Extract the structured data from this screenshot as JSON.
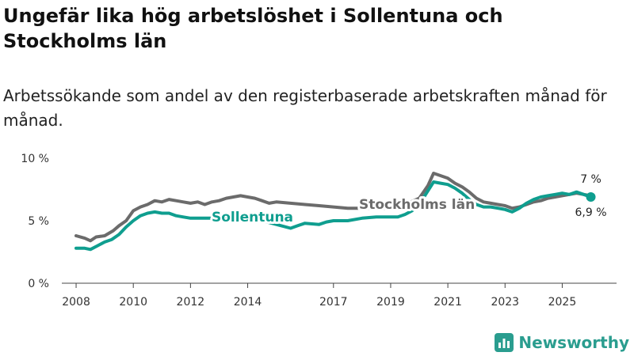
{
  "title": "Ungefär lika hög arbetslöshet i Sollentuna och Stockholms län",
  "subtitle": "Arbetssökande som andel av den registerbaserade arbetskraften månad för månad.",
  "brand": {
    "name": "Newsworthy",
    "color": "#2a9d8f"
  },
  "chart_data": {
    "type": "line",
    "ylim": [
      0,
      10
    ],
    "xlim": [
      2007.5,
      2026.9
    ],
    "yticks": [
      0,
      5,
      10
    ],
    "ytick_labels": [
      "0 %",
      "5 %",
      "10 %"
    ],
    "xticks": [
      2008,
      2010,
      2012,
      2014,
      2017,
      2019,
      2021,
      2023,
      2025
    ],
    "xtick_labels": [
      "2008",
      "2010",
      "2012",
      "2014",
      "2017",
      "2019",
      "2021",
      "2023",
      "2025"
    ],
    "grid": false,
    "series": [
      {
        "name": "Stockholms län",
        "color": "#6b6b6b",
        "label": "Stockholms län",
        "end_label": "7 %",
        "points": [
          [
            2008.0,
            3.8
          ],
          [
            2008.3,
            3.6
          ],
          [
            2008.5,
            3.4
          ],
          [
            2008.7,
            3.7
          ],
          [
            2009.0,
            3.8
          ],
          [
            2009.3,
            4.2
          ],
          [
            2009.5,
            4.6
          ],
          [
            2009.75,
            5.0
          ],
          [
            2010.0,
            5.8
          ],
          [
            2010.25,
            6.1
          ],
          [
            2010.5,
            6.3
          ],
          [
            2010.75,
            6.6
          ],
          [
            2011.0,
            6.5
          ],
          [
            2011.25,
            6.7
          ],
          [
            2011.5,
            6.6
          ],
          [
            2011.75,
            6.5
          ],
          [
            2012.0,
            6.4
          ],
          [
            2012.25,
            6.5
          ],
          [
            2012.5,
            6.3
          ],
          [
            2012.75,
            6.5
          ],
          [
            2013.0,
            6.6
          ],
          [
            2013.25,
            6.8
          ],
          [
            2013.5,
            6.9
          ],
          [
            2013.75,
            7.0
          ],
          [
            2014.0,
            6.9
          ],
          [
            2014.25,
            6.8
          ],
          [
            2014.5,
            6.6
          ],
          [
            2014.75,
            6.4
          ],
          [
            2015.0,
            6.5
          ],
          [
            2015.5,
            6.4
          ],
          [
            2016.0,
            6.3
          ],
          [
            2016.5,
            6.2
          ],
          [
            2017.0,
            6.1
          ],
          [
            2017.5,
            6.0
          ],
          [
            2018.0,
            6.0
          ],
          [
            2018.5,
            6.0
          ],
          [
            2019.0,
            6.0
          ],
          [
            2019.5,
            6.3
          ],
          [
            2020.0,
            6.8
          ],
          [
            2020.3,
            7.8
          ],
          [
            2020.5,
            8.8
          ],
          [
            2020.75,
            8.6
          ],
          [
            2021.0,
            8.4
          ],
          [
            2021.25,
            8.0
          ],
          [
            2021.5,
            7.7
          ],
          [
            2021.75,
            7.3
          ],
          [
            2022.0,
            6.8
          ],
          [
            2022.25,
            6.5
          ],
          [
            2022.5,
            6.4
          ],
          [
            2022.75,
            6.3
          ],
          [
            2023.0,
            6.2
          ],
          [
            2023.25,
            6.0
          ],
          [
            2023.5,
            6.1
          ],
          [
            2023.75,
            6.3
          ],
          [
            2024.0,
            6.5
          ],
          [
            2024.25,
            6.6
          ],
          [
            2024.5,
            6.8
          ],
          [
            2024.75,
            6.9
          ],
          [
            2025.0,
            7.0
          ],
          [
            2025.25,
            7.1
          ],
          [
            2025.5,
            7.2
          ],
          [
            2025.75,
            7.1
          ],
          [
            2026.0,
            7.0
          ]
        ]
      },
      {
        "name": "Sollentuna",
        "color": "#0f9e8f",
        "label": "Sollentuna",
        "end_label": "6,9 %",
        "points": [
          [
            2008.0,
            2.8
          ],
          [
            2008.3,
            2.8
          ],
          [
            2008.5,
            2.7
          ],
          [
            2008.75,
            3.0
          ],
          [
            2009.0,
            3.3
          ],
          [
            2009.25,
            3.5
          ],
          [
            2009.5,
            3.9
          ],
          [
            2009.75,
            4.5
          ],
          [
            2010.0,
            5.0
          ],
          [
            2010.25,
            5.4
          ],
          [
            2010.5,
            5.6
          ],
          [
            2010.75,
            5.7
          ],
          [
            2011.0,
            5.6
          ],
          [
            2011.25,
            5.6
          ],
          [
            2011.5,
            5.4
          ],
          [
            2011.75,
            5.3
          ],
          [
            2012.0,
            5.2
          ],
          [
            2012.5,
            5.2
          ],
          [
            2013.0,
            5.2
          ],
          [
            2013.5,
            5.3
          ],
          [
            2014.0,
            5.2
          ],
          [
            2014.5,
            5.0
          ],
          [
            2015.0,
            4.7
          ],
          [
            2015.5,
            4.4
          ],
          [
            2015.75,
            4.6
          ],
          [
            2016.0,
            4.8
          ],
          [
            2016.5,
            4.7
          ],
          [
            2016.75,
            4.9
          ],
          [
            2017.0,
            5.0
          ],
          [
            2017.5,
            5.0
          ],
          [
            2018.0,
            5.2
          ],
          [
            2018.5,
            5.3
          ],
          [
            2019.0,
            5.3
          ],
          [
            2019.25,
            5.3
          ],
          [
            2019.5,
            5.5
          ],
          [
            2019.75,
            5.8
          ],
          [
            2020.0,
            6.3
          ],
          [
            2020.25,
            7.2
          ],
          [
            2020.5,
            8.1
          ],
          [
            2020.75,
            8.0
          ],
          [
            2021.0,
            7.9
          ],
          [
            2021.25,
            7.6
          ],
          [
            2021.5,
            7.2
          ],
          [
            2021.75,
            6.7
          ],
          [
            2022.0,
            6.3
          ],
          [
            2022.25,
            6.1
          ],
          [
            2022.5,
            6.1
          ],
          [
            2022.75,
            6.0
          ],
          [
            2023.0,
            5.9
          ],
          [
            2023.25,
            5.7
          ],
          [
            2023.5,
            6.0
          ],
          [
            2023.75,
            6.4
          ],
          [
            2024.0,
            6.7
          ],
          [
            2024.25,
            6.9
          ],
          [
            2024.5,
            7.0
          ],
          [
            2024.75,
            7.1
          ],
          [
            2025.0,
            7.2
          ],
          [
            2025.25,
            7.1
          ],
          [
            2025.5,
            7.3
          ],
          [
            2025.75,
            7.1
          ],
          [
            2026.0,
            6.9
          ]
        ]
      }
    ]
  }
}
